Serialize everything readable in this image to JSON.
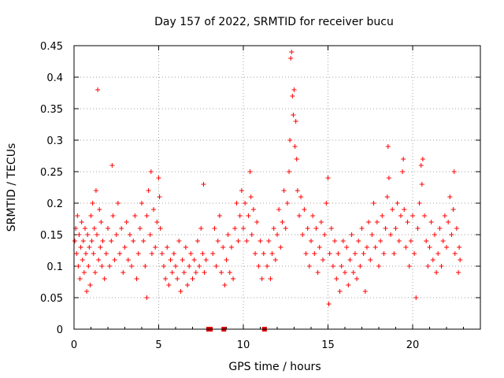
{
  "chart_data": {
    "type": "scatter",
    "title": "Day 157 of 2022, SRMTID for receiver bucu",
    "xlabel": "GPS time / hours",
    "ylabel": "SRMTID / TECUs",
    "xlim": [
      0,
      24
    ],
    "ylim": [
      0,
      0.45
    ],
    "x_ticks": [
      0,
      5,
      10,
      15,
      20
    ],
    "x_tick_labels": [
      "0",
      "5",
      "10",
      "15",
      "20"
    ],
    "y_ticks": [
      0,
      0.05,
      0.1,
      0.15,
      0.2,
      0.25,
      0.3,
      0.35,
      0.4,
      0.45
    ],
    "y_tick_labels": [
      "0",
      "0.05",
      "0.1",
      "0.15",
      "0.2",
      "0.25",
      "0.3",
      "0.35",
      "0.4",
      "0.45"
    ],
    "grid": true,
    "marker": "+",
    "color": "#ff0000",
    "gap_markers_x": [
      7.95,
      8.05,
      8.85,
      11.25
    ],
    "series": [
      {
        "name": "SRMTID",
        "points": [
          [
            0.05,
            0.14
          ],
          [
            0.1,
            0.16
          ],
          [
            0.15,
            0.12
          ],
          [
            0.2,
            0.18
          ],
          [
            0.25,
            0.1
          ],
          [
            0.3,
            0.15
          ],
          [
            0.35,
            0.08
          ],
          [
            0.4,
            0.13
          ],
          [
            0.45,
            0.17
          ],
          [
            0.5,
            0.11
          ],
          [
            0.55,
            0.14
          ],
          [
            0.6,
            0.09
          ],
          [
            0.65,
            0.16
          ],
          [
            0.7,
            0.12
          ],
          [
            0.75,
            0.06
          ],
          [
            0.8,
            0.15
          ],
          [
            0.85,
            0.1
          ],
          [
            0.9,
            0.13
          ],
          [
            0.95,
            0.07
          ],
          [
            1.0,
            0.18
          ],
          [
            1.05,
            0.14
          ],
          [
            1.1,
            0.2
          ],
          [
            1.15,
            0.12
          ],
          [
            1.2,
            0.16
          ],
          [
            1.25,
            0.09
          ],
          [
            1.3,
            0.22
          ],
          [
            1.35,
            0.15
          ],
          [
            1.4,
            0.38
          ],
          [
            1.45,
            0.11
          ],
          [
            1.5,
            0.19
          ],
          [
            1.55,
            0.13
          ],
          [
            1.6,
            0.17
          ],
          [
            1.65,
            0.1
          ],
          [
            1.7,
            0.14
          ],
          [
            1.8,
            0.08
          ],
          [
            1.9,
            0.12
          ],
          [
            2.0,
            0.16
          ],
          [
            2.1,
            0.1
          ],
          [
            2.2,
            0.14
          ],
          [
            2.25,
            0.26
          ],
          [
            2.3,
            0.18
          ],
          [
            2.4,
            0.11
          ],
          [
            2.5,
            0.15
          ],
          [
            2.6,
            0.2
          ],
          [
            2.7,
            0.12
          ],
          [
            2.8,
            0.16
          ],
          [
            2.9,
            0.09
          ],
          [
            3.0,
            0.13
          ],
          [
            3.1,
            0.17
          ],
          [
            3.2,
            0.11
          ],
          [
            3.3,
            0.15
          ],
          [
            3.4,
            0.1
          ],
          [
            3.5,
            0.14
          ],
          [
            3.6,
            0.18
          ],
          [
            3.7,
            0.08
          ],
          [
            3.8,
            0.12
          ],
          [
            3.9,
            0.16
          ],
          [
            4.0,
            0.2
          ],
          [
            4.1,
            0.14
          ],
          [
            4.2,
            0.1
          ],
          [
            4.3,
            0.18
          ],
          [
            4.4,
            0.22
          ],
          [
            4.5,
            0.15
          ],
          [
            4.55,
            0.25
          ],
          [
            4.6,
            0.12
          ],
          [
            4.7,
            0.19
          ],
          [
            4.8,
            0.13
          ],
          [
            4.9,
            0.17
          ],
          [
            5.0,
            0.24
          ],
          [
            5.05,
            0.21
          ],
          [
            4.3,
            0.05
          ],
          [
            5.1,
            0.16
          ],
          [
            5.2,
            0.12
          ],
          [
            5.3,
            0.1
          ],
          [
            5.4,
            0.08
          ],
          [
            5.5,
            0.13
          ],
          [
            5.6,
            0.07
          ],
          [
            5.7,
            0.11
          ],
          [
            5.8,
            0.09
          ],
          [
            5.9,
            0.12
          ],
          [
            6.0,
            0.1
          ],
          [
            6.1,
            0.08
          ],
          [
            6.2,
            0.14
          ],
          [
            6.3,
            0.06
          ],
          [
            6.4,
            0.11
          ],
          [
            6.5,
            0.09
          ],
          [
            6.6,
            0.13
          ],
          [
            6.7,
            0.07
          ],
          [
            6.8,
            0.1
          ],
          [
            6.9,
            0.12
          ],
          [
            7.0,
            0.08
          ],
          [
            7.1,
            0.11
          ],
          [
            7.2,
            0.09
          ],
          [
            7.3,
            0.14
          ],
          [
            7.4,
            0.1
          ],
          [
            7.5,
            0.16
          ],
          [
            7.6,
            0.12
          ],
          [
            7.65,
            0.23
          ],
          [
            7.7,
            0.09
          ],
          [
            7.8,
            0.11
          ],
          [
            8.2,
            0.12
          ],
          [
            8.3,
            0.16
          ],
          [
            8.4,
            0.1
          ],
          [
            8.5,
            0.14
          ],
          [
            8.6,
            0.18
          ],
          [
            8.7,
            0.09
          ],
          [
            8.8,
            0.13
          ],
          [
            8.9,
            0.07
          ],
          [
            9.0,
            0.11
          ],
          [
            9.1,
            0.15
          ],
          [
            9.2,
            0.09
          ],
          [
            9.3,
            0.13
          ],
          [
            9.4,
            0.08
          ],
          [
            9.5,
            0.16
          ],
          [
            9.6,
            0.2
          ],
          [
            9.7,
            0.14
          ],
          [
            9.8,
            0.18
          ],
          [
            9.9,
            0.22
          ],
          [
            10.0,
            0.16
          ],
          [
            10.1,
            0.2
          ],
          [
            10.2,
            0.14
          ],
          [
            10.3,
            0.18
          ],
          [
            10.4,
            0.25
          ],
          [
            10.45,
            0.21
          ],
          [
            10.5,
            0.15
          ],
          [
            10.6,
            0.19
          ],
          [
            10.7,
            0.12
          ],
          [
            10.8,
            0.17
          ],
          [
            10.9,
            0.1
          ],
          [
            11.0,
            0.14
          ],
          [
            11.1,
            0.08
          ],
          [
            11.2,
            0.12
          ],
          [
            11.4,
            0.1
          ],
          [
            11.5,
            0.14
          ],
          [
            11.6,
            0.08
          ],
          [
            11.7,
            0.12
          ],
          [
            11.8,
            0.16
          ],
          [
            11.9,
            0.11
          ],
          [
            12.0,
            0.15
          ],
          [
            12.1,
            0.19
          ],
          [
            12.2,
            0.13
          ],
          [
            12.3,
            0.17
          ],
          [
            12.4,
            0.22
          ],
          [
            12.5,
            0.16
          ],
          [
            12.6,
            0.2
          ],
          [
            12.7,
            0.25
          ],
          [
            12.75,
            0.3
          ],
          [
            12.8,
            0.43
          ],
          [
            12.85,
            0.44
          ],
          [
            12.9,
            0.37
          ],
          [
            12.95,
            0.34
          ],
          [
            13.0,
            0.38
          ],
          [
            13.05,
            0.29
          ],
          [
            13.1,
            0.33
          ],
          [
            13.15,
            0.27
          ],
          [
            13.2,
            0.22
          ],
          [
            13.3,
            0.18
          ],
          [
            13.4,
            0.21
          ],
          [
            13.5,
            0.15
          ],
          [
            13.6,
            0.19
          ],
          [
            13.7,
            0.12
          ],
          [
            13.8,
            0.16
          ],
          [
            13.9,
            0.1
          ],
          [
            14.0,
            0.14
          ],
          [
            14.1,
            0.18
          ],
          [
            14.2,
            0.12
          ],
          [
            14.3,
            0.16
          ],
          [
            14.4,
            0.09
          ],
          [
            14.5,
            0.13
          ],
          [
            14.6,
            0.17
          ],
          [
            14.7,
            0.11
          ],
          [
            14.8,
            0.15
          ],
          [
            14.9,
            0.2
          ],
          [
            15.0,
            0.24
          ],
          [
            15.05,
            0.04
          ],
          [
            15.1,
            0.12
          ],
          [
            15.2,
            0.16
          ],
          [
            15.3,
            0.1
          ],
          [
            15.4,
            0.14
          ],
          [
            15.5,
            0.08
          ],
          [
            15.6,
            0.12
          ],
          [
            15.7,
            0.06
          ],
          [
            15.8,
            0.1
          ],
          [
            15.9,
            0.14
          ],
          [
            16.0,
            0.09
          ],
          [
            16.1,
            0.13
          ],
          [
            16.2,
            0.07
          ],
          [
            16.3,
            0.11
          ],
          [
            16.4,
            0.15
          ],
          [
            16.5,
            0.09
          ],
          [
            16.6,
            0.12
          ],
          [
            16.7,
            0.08
          ],
          [
            16.8,
            0.14
          ],
          [
            16.9,
            0.1
          ],
          [
            17.0,
            0.16
          ],
          [
            17.1,
            0.12
          ],
          [
            17.2,
            0.06
          ],
          [
            17.3,
            0.13
          ],
          [
            17.4,
            0.17
          ],
          [
            17.5,
            0.11
          ],
          [
            17.6,
            0.15
          ],
          [
            17.7,
            0.2
          ],
          [
            17.8,
            0.13
          ],
          [
            17.9,
            0.17
          ],
          [
            18.0,
            0.1
          ],
          [
            18.1,
            0.14
          ],
          [
            18.2,
            0.18
          ],
          [
            18.3,
            0.12
          ],
          [
            18.4,
            0.16
          ],
          [
            18.5,
            0.21
          ],
          [
            18.55,
            0.29
          ],
          [
            18.6,
            0.24
          ],
          [
            18.7,
            0.15
          ],
          [
            18.8,
            0.19
          ],
          [
            18.9,
            0.12
          ],
          [
            19.0,
            0.16
          ],
          [
            19.1,
            0.2
          ],
          [
            19.2,
            0.14
          ],
          [
            19.3,
            0.18
          ],
          [
            19.4,
            0.25
          ],
          [
            19.45,
            0.27
          ],
          [
            19.5,
            0.19
          ],
          [
            19.6,
            0.13
          ],
          [
            19.7,
            0.17
          ],
          [
            19.8,
            0.1
          ],
          [
            19.9,
            0.14
          ],
          [
            20.0,
            0.18
          ],
          [
            20.1,
            0.12
          ],
          [
            20.2,
            0.05
          ],
          [
            20.3,
            0.16
          ],
          [
            20.4,
            0.2
          ],
          [
            20.5,
            0.26
          ],
          [
            20.55,
            0.23
          ],
          [
            20.6,
            0.27
          ],
          [
            20.7,
            0.18
          ],
          [
            20.8,
            0.14
          ],
          [
            20.9,
            0.1
          ],
          [
            21.0,
            0.13
          ],
          [
            21.1,
            0.17
          ],
          [
            21.2,
            0.11
          ],
          [
            21.3,
            0.15
          ],
          [
            21.4,
            0.09
          ],
          [
            21.5,
            0.12
          ],
          [
            21.6,
            0.16
          ],
          [
            21.7,
            0.1
          ],
          [
            21.8,
            0.14
          ],
          [
            21.9,
            0.18
          ],
          [
            22.0,
            0.13
          ],
          [
            22.1,
            0.17
          ],
          [
            22.2,
            0.21
          ],
          [
            22.3,
            0.15
          ],
          [
            22.4,
            0.19
          ],
          [
            22.45,
            0.25
          ],
          [
            22.5,
            0.12
          ],
          [
            22.6,
            0.16
          ],
          [
            22.7,
            0.09
          ],
          [
            22.75,
            0.13
          ],
          [
            22.8,
            0.11
          ]
        ]
      }
    ]
  }
}
